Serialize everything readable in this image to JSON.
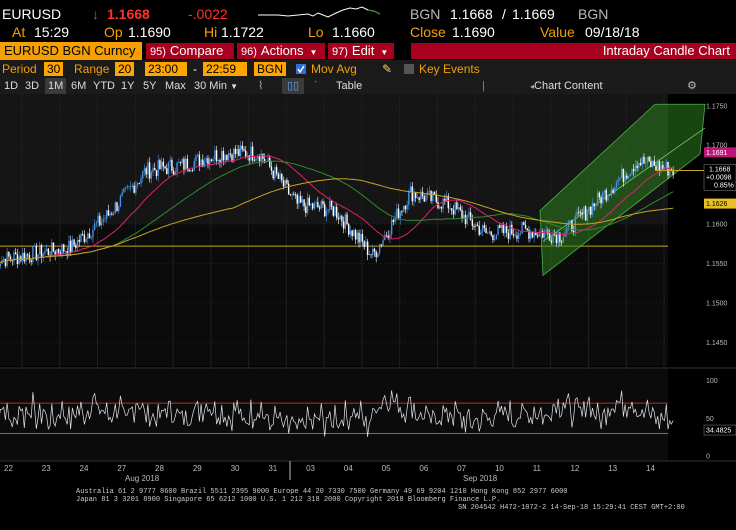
{
  "quote": {
    "ticker": "EURUSD",
    "last": "1.1668",
    "change": "-.0022",
    "source": "BGN",
    "bid": "1.1668",
    "ask": "1.1669",
    "source2": "BGN",
    "at_label": "At",
    "at_time": "15:29",
    "open_label": "Op",
    "open": "1.1690",
    "hi_label": "Hi",
    "hi": "1.1722",
    "lo_label": "Lo",
    "lo": "1.1660",
    "close_label": "Close",
    "close": "1.1690",
    "value_label": "Value",
    "value_date": "09/18/18"
  },
  "titlebar": {
    "security": "EURUSD BGN Curncy",
    "compare": {
      "num": "95)",
      "label": "Compare"
    },
    "actions": {
      "num": "96)",
      "label": "Actions"
    },
    "edit": {
      "num": "97)",
      "label": "Edit"
    },
    "chart_title": "Intraday Candle Chart"
  },
  "params": {
    "period_label": "Period",
    "period_value": "30",
    "range_label": "Range",
    "range_value": "20",
    "time_from": "23:00",
    "time_to": "22:59",
    "source": "BGN",
    "mov_avg_label": "Mov Avg",
    "key_events_label": "Key Events"
  },
  "toolbar": {
    "ranges": [
      "1D",
      "3D",
      "1M",
      "6M",
      "YTD",
      "1Y",
      "5Y",
      "Max"
    ],
    "selected": "1M",
    "interval": "30 Min",
    "table_label": "Table",
    "chart_content_label": "Chart Content"
  },
  "price_axis": {
    "ticks": [
      "1.1750",
      "1.1700",
      "1.1650",
      "1.1600",
      "1.1550",
      "1.1500",
      "1.1450"
    ],
    "tag_high": "1.1691",
    "tag_last": "1.1668",
    "tag_change": "+0.0098",
    "tag_pct": "0.85%",
    "tag_ma": "1.1626"
  },
  "osc_axis": {
    "ticks": [
      "100",
      "50",
      "0"
    ],
    "last": "34.4825"
  },
  "x_axis": {
    "days": [
      "22",
      "23",
      "24",
      "27",
      "28",
      "29",
      "30",
      "31",
      "03",
      "04",
      "05",
      "06",
      "07",
      "10",
      "11",
      "12",
      "13",
      "14"
    ],
    "month_aug": "Aug 2018",
    "month_sep": "Sep 2018"
  },
  "footer": {
    "line1": "Australia 61 2 9777 8600 Brazil 5511 2395 9000 Europe 44 20 7330 7500 Germany 49 69 9204 1210 Hong Kong 852 2977 6000",
    "line2": "Japan 81 3 3201 8900        Singapore 65 6212 1000        U.S. 1 212 318 2000        Copyright 2018 Bloomberg Finance L.P.",
    "line3": "SN 204542 H472-1072-2 14-Sep-18 15:29:41 CEST GMT+2:00"
  },
  "chart_data": {
    "type": "candlestick",
    "price_ylim": [
      1.142,
      1.1765
    ],
    "osc_ylim": [
      -5,
      115
    ],
    "day_closes": [
      1.1562,
      1.157,
      1.1612,
      1.1668,
      1.1675,
      1.169,
      1.169,
      1.1625,
      1.1618,
      1.156,
      1.164,
      1.1625,
      1.1588,
      1.1592,
      1.1586,
      1.1632,
      1.168,
      1.1668
    ],
    "support_line": 1.1572,
    "colors": {
      "up_candle": "#4a90e2",
      "down_candle": "#ffffff",
      "ma_fast": "#e0206a",
      "ma_mid": "#2e8b2e",
      "ma_slow": "#c9a227",
      "channel": "#2e7d1f",
      "osc_upper": "#b03030",
      "osc_lower": "#3a9a3a"
    }
  }
}
